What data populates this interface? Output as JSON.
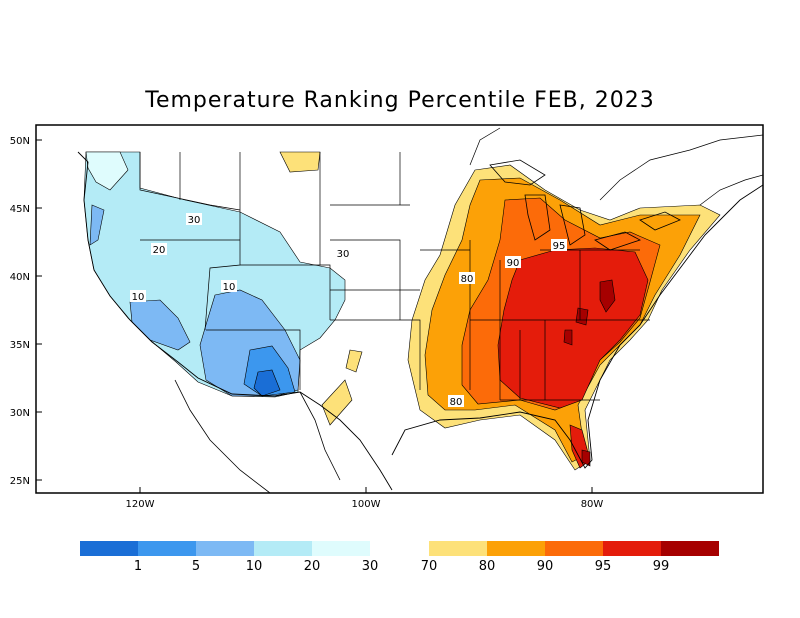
{
  "title": "Temperature Ranking Percentile FEB, 2023",
  "map": {
    "lat_labels": [
      "50N",
      "45N",
      "40N",
      "35N",
      "30N",
      "25N"
    ],
    "lon_labels": [
      "120W",
      "100W",
      "80W"
    ],
    "contour_labels": [
      "30",
      "20",
      "10",
      "10",
      "30",
      "80",
      "90",
      "95",
      "80"
    ]
  },
  "legend": {
    "cold_colors": [
      "#1a6ed6",
      "#3c97ee",
      "#7db9f4",
      "#b4ebf6",
      "#dffcfd"
    ],
    "warm_colors": [
      "#fde179",
      "#fca107",
      "#fc6b09",
      "#e41c0b",
      "#a60000"
    ],
    "labels": [
      "1",
      "5",
      "10",
      "20",
      "30",
      "70",
      "80",
      "90",
      "95",
      "99"
    ]
  },
  "colors": {
    "p1": "#1a6ed6",
    "p5": "#3c97ee",
    "p10": "#7db9f4",
    "p20": "#b4ebf6",
    "p30": "#dffcfd",
    "p70": "#fde179",
    "p80": "#fca107",
    "p90": "#fc6b09",
    "p95": "#e41c0b",
    "p99": "#a60000"
  }
}
